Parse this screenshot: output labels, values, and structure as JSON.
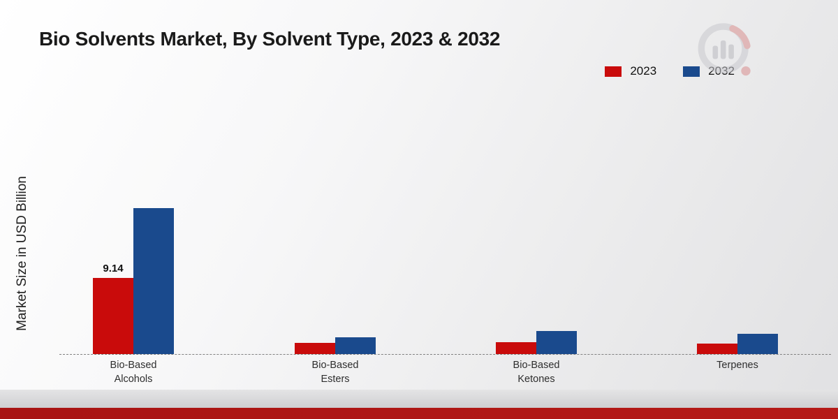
{
  "chart_data": {
    "type": "bar",
    "title": "Bio Solvents Market, By Solvent Type, 2023 & 2032",
    "ylabel": "Market Size in USD Billion",
    "xlabel": "",
    "categories": [
      "Bio-Based Alcohols",
      "Bio-Based Esters",
      "Bio-Based Ketones",
      "Terpenes"
    ],
    "tick_labels": [
      "Bio-Based\nAlcohols",
      "Bio-Based\nEsters",
      "Bio-Based\nKetones",
      "Terpenes"
    ],
    "series": [
      {
        "name": "2023",
        "color": "#c90b0b",
        "values": [
          9.14,
          1.3,
          1.45,
          1.25
        ]
      },
      {
        "name": "2032",
        "color": "#1a4a8d",
        "values": [
          17.55,
          2.05,
          2.75,
          2.4
        ]
      }
    ],
    "ylim": [
      0,
      30
    ],
    "grid": false,
    "legend_position": "top-right",
    "baseline_style": "dashed",
    "annotations": [
      {
        "series": "2023",
        "category": "Bio-Based Alcohols",
        "text": "9.14",
        "value": 9.14
      }
    ]
  },
  "footer": {
    "red_band_color_left": "#a81414",
    "red_band_color_right": "#b51a18"
  },
  "watermark": {
    "name": "market-research-logo"
  }
}
